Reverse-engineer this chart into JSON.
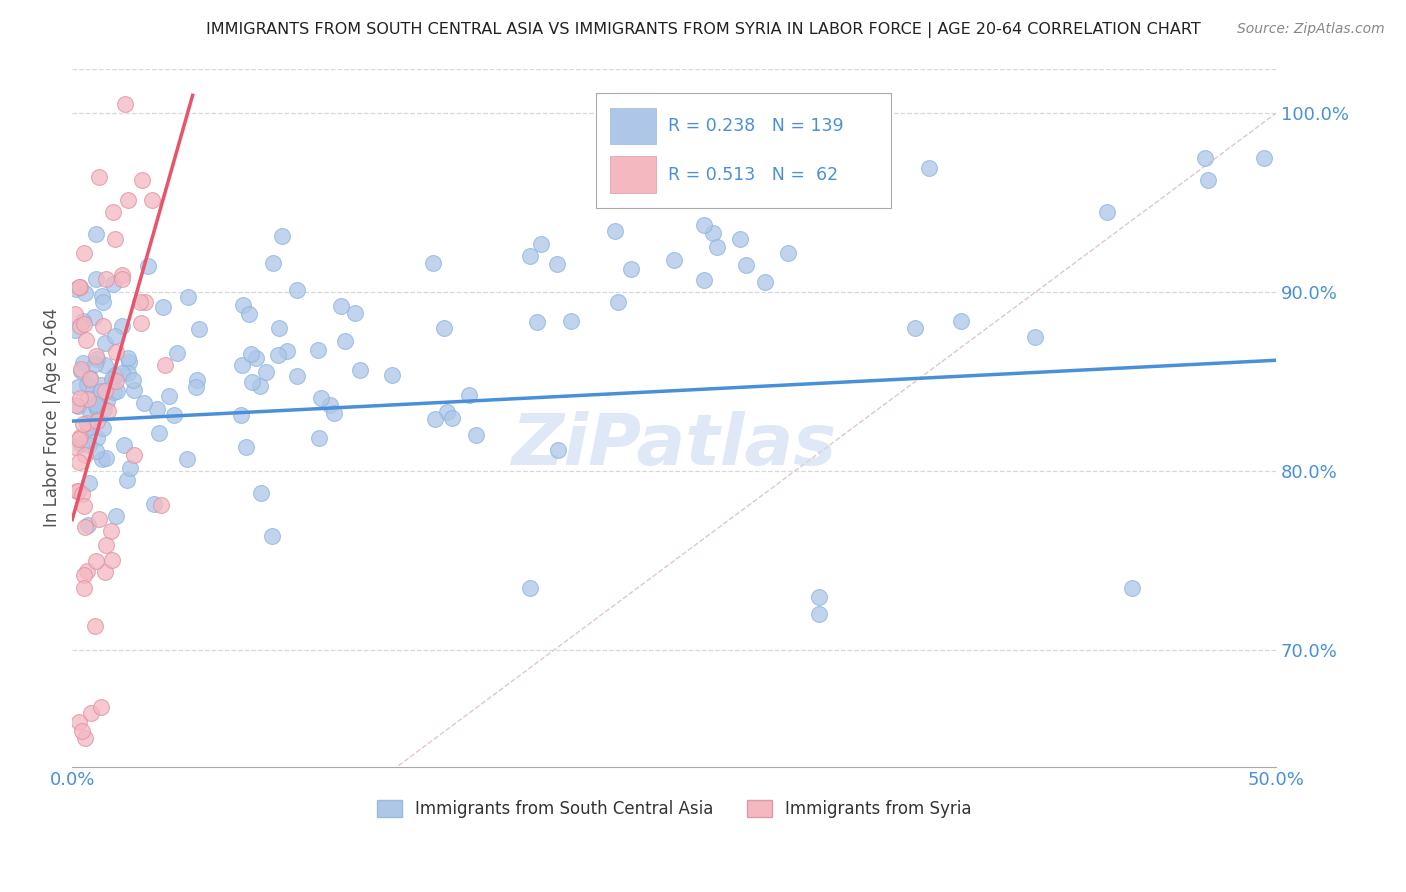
{
  "title": "IMMIGRANTS FROM SOUTH CENTRAL ASIA VS IMMIGRANTS FROM SYRIA IN LABOR FORCE | AGE 20-64 CORRELATION CHART",
  "source": "Source: ZipAtlas.com",
  "ylabel_label": "In Labor Force | Age 20-64",
  "legend_entries": [
    {
      "label": "Immigrants from South Central Asia",
      "color": "#aec6e8",
      "R": "0.238",
      "N": "139"
    },
    {
      "label": "Immigrants from Syria",
      "color": "#f4b8c1",
      "R": "0.513",
      "N": "62"
    }
  ],
  "blue_scatter_color": "#aec6e8",
  "pink_scatter_color": "#f4b8c1",
  "blue_line_color": "#4a90d9",
  "pink_line_color": "#e8546a",
  "ref_line_color": "#d0d0d0",
  "watermark_color": "#c8daf0",
  "background_color": "#ffffff",
  "grid_color": "#d8d8d8",
  "title_color": "#222222",
  "axis_label_color": "#4a90d9",
  "x_min": 0.0,
  "x_max": 0.5,
  "y_min": 0.635,
  "y_max": 1.025,
  "y_ticks": [
    0.7,
    0.8,
    0.9,
    1.0
  ],
  "y_tick_labels": [
    "70.0%",
    "80.0%",
    "90.0%",
    "100.0%"
  ],
  "blue_trend_x0": 0.0,
  "blue_trend_x1": 0.5,
  "blue_trend_y0": 0.828,
  "blue_trend_y1": 0.862,
  "pink_trend_x0": 0.0,
  "pink_trend_x1": 0.05,
  "pink_trend_y0": 0.773,
  "pink_trend_y1": 1.01
}
